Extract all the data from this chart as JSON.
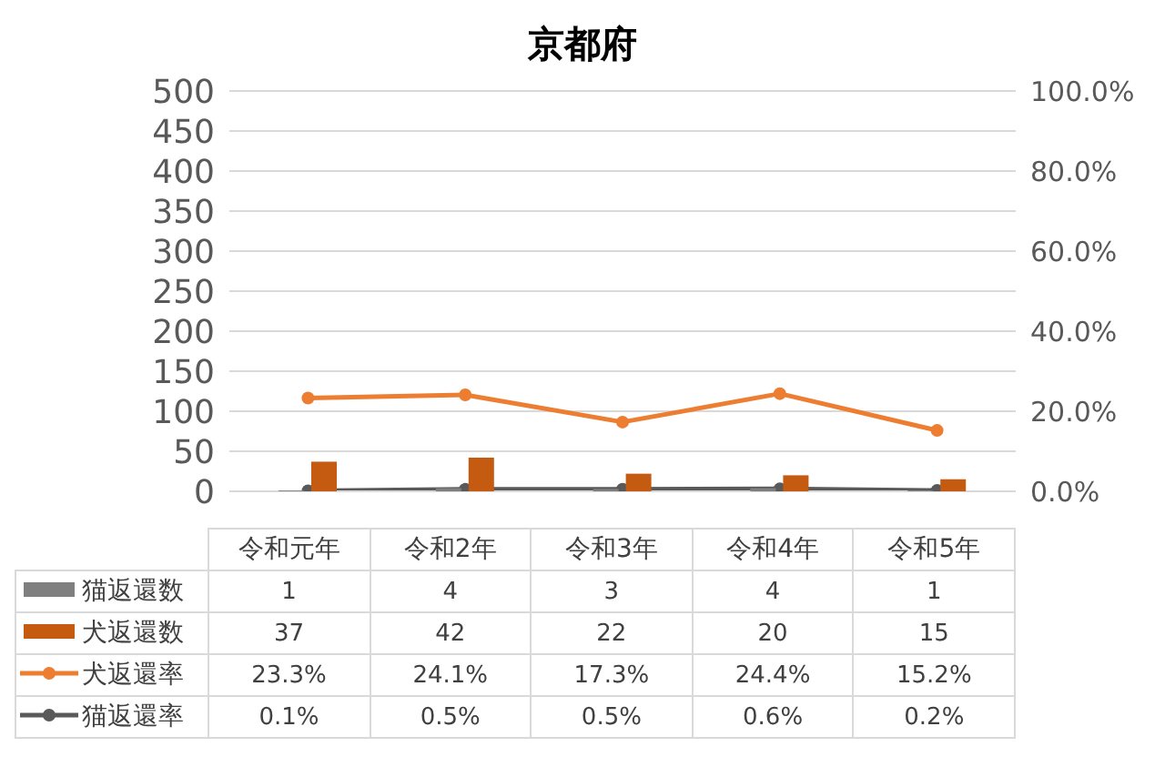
{
  "chart_data": {
    "type": "bar",
    "title": "京都府",
    "categories": [
      "令和元年",
      "令和2年",
      "令和3年",
      "令和4年",
      "令和5年"
    ],
    "series": [
      {
        "name": "猫返還数",
        "color": "#7f7f7f",
        "values": [
          1,
          4,
          3,
          4,
          1
        ],
        "value_labels": [
          "1",
          "4",
          "3",
          "4",
          "1"
        ]
      },
      {
        "name": "犬返還数",
        "color": "#c55a11",
        "values": [
          37,
          42,
          22,
          20,
          15
        ],
        "value_labels": [
          "37",
          "42",
          "22",
          "20",
          "15"
        ]
      },
      {
        "name": "犬返還率",
        "type": "line",
        "axis": "y2",
        "color": "#ed7d31",
        "values": [
          23.3,
          24.1,
          17.3,
          24.4,
          15.2
        ],
        "value_labels": [
          "23.3%",
          "24.1%",
          "17.3%",
          "24.4%",
          "15.2%"
        ]
      },
      {
        "name": "猫返還率",
        "type": "line",
        "axis": "y2",
        "color": "#595959",
        "values": [
          0.1,
          0.5,
          0.5,
          0.6,
          0.2
        ],
        "value_labels": [
          "0.1%",
          "0.5%",
          "0.5%",
          "0.6%",
          "0.2%"
        ]
      }
    ],
    "ylim": [
      0,
      500
    ],
    "yticks": [
      0,
      50,
      100,
      150,
      200,
      250,
      300,
      350,
      400,
      450,
      500
    ],
    "y2lim": [
      0,
      100
    ],
    "y2ticks": [
      {
        "value": 0,
        "label": "0.0%"
      },
      {
        "value": 20,
        "label": "20.0%"
      },
      {
        "value": 40,
        "label": "40.0%"
      },
      {
        "value": 60,
        "label": "60.0%"
      },
      {
        "value": 80,
        "label": "80.0%"
      },
      {
        "value": 100,
        "label": "100.0%"
      }
    ],
    "grid": "y",
    "legend": "bottom",
    "marker": "circle"
  }
}
